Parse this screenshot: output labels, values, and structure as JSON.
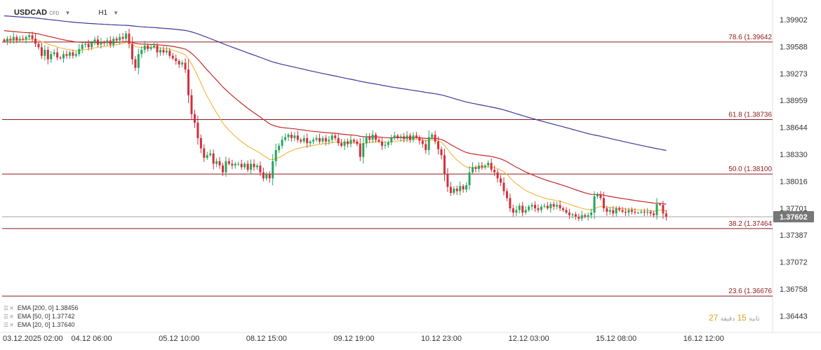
{
  "header": {
    "symbol": "USDCAD",
    "instrument_type": "CFD",
    "timeframe": "H1",
    "caret_icon": "caret-down-icon"
  },
  "colors": {
    "bull": "#26a65b",
    "bear": "#d32f3c",
    "ema200": "#3b3a9a",
    "ema50": "#c62828",
    "ema20": "#f2b53a",
    "fib": "#8b1a1a",
    "price_line": "#888888",
    "price_badge": "#777777"
  },
  "legend": [
    {
      "label": "EMA [200, 0]",
      "value": "1.38456"
    },
    {
      "label": "EMA [50, 0]",
      "value": "1.37742"
    },
    {
      "label": "EMA [20, 0]",
      "value": "1.37640"
    }
  ],
  "countdown": {
    "arabic": "دقيقة",
    "value": "15",
    "arabic2": "ثانية",
    "value2": "27"
  },
  "chart_data": {
    "type": "candlestick",
    "title": "",
    "xlabel": "",
    "ylabel": "",
    "ylim": [
      1.363,
      1.4005
    ],
    "y_ticks": [
      "1.39902",
      "1.39588",
      "1.39273",
      "1.38959",
      "1.38644",
      "1.38330",
      "1.38016",
      "1.37701",
      "1.37387",
      "1.37072",
      "1.36758",
      "1.36443"
    ],
    "x_ticks": [
      {
        "label": "03.12.2025  02:00",
        "bar": 0
      },
      {
        "label": "04.12  06:00",
        "bar": 28
      },
      {
        "label": "05.12  10:00",
        "bar": 56
      },
      {
        "label": "08.12  15:00",
        "bar": 84
      },
      {
        "label": "09.12  19:00",
        "bar": 112
      },
      {
        "label": "10.12  23:00",
        "bar": 140
      },
      {
        "label": "12.12  03:00",
        "bar": 168
      },
      {
        "label": "15.12  08:00",
        "bar": 196
      },
      {
        "label": "16.12  12:00",
        "bar": 224
      }
    ],
    "current_price": "1.37602",
    "current_price_value": 1.37602,
    "fib_levels": [
      {
        "label": "78.6 (1.39642",
        "value": 1.39642
      },
      {
        "label": "61.8 (1.38736",
        "value": 1.38736
      },
      {
        "label": "50.0 (1.38100",
        "value": 1.381
      },
      {
        "label": "38.2 (1.37464",
        "value": 1.37464
      },
      {
        "label": "23.6 (1.36676",
        "value": 1.36676
      }
    ],
    "closes": [
      1.3965,
      1.3968,
      1.3966,
      1.397,
      1.3966,
      1.3968,
      1.3967,
      1.397,
      1.3972,
      1.3968,
      1.3962,
      1.3958,
      1.3948,
      1.3955,
      1.3944,
      1.395,
      1.3952,
      1.3946,
      1.3945,
      1.395,
      1.3948,
      1.3952,
      1.3948,
      1.395,
      1.3956,
      1.3961,
      1.3962,
      1.3958,
      1.3963,
      1.3967,
      1.3961,
      1.3964,
      1.3963,
      1.3966,
      1.3961,
      1.3968,
      1.3966,
      1.397,
      1.3968,
      1.3974,
      1.3962,
      1.3944,
      1.3934,
      1.395,
      1.3955,
      1.396,
      1.3956,
      1.3958,
      1.396,
      1.3952,
      1.3955,
      1.3952,
      1.3954,
      1.3948,
      1.3945,
      1.3942,
      1.3938,
      1.394,
      1.3932,
      1.3902,
      1.388,
      1.387,
      1.3852,
      1.384,
      1.3829,
      1.3832,
      1.3834,
      1.3822,
      1.3825,
      1.382,
      1.3812,
      1.3825,
      1.3822,
      1.382,
      1.3822,
      1.3822,
      1.3818,
      1.3822,
      1.3815,
      1.3822,
      1.3818,
      1.382,
      1.3812,
      1.3805,
      1.381,
      1.3805,
      1.3825,
      1.3838,
      1.3843,
      1.385,
      1.3853,
      1.3856,
      1.3852,
      1.3855,
      1.385,
      1.3848,
      1.3852,
      1.3846,
      1.3848,
      1.385,
      1.3852,
      1.3848,
      1.3852,
      1.3848,
      1.385,
      1.3855,
      1.3852,
      1.3846,
      1.3843,
      1.3848,
      1.3845,
      1.385,
      1.3848,
      1.3845,
      1.383,
      1.3846,
      1.3854,
      1.385,
      1.3856,
      1.385,
      1.3848,
      1.3843,
      1.3844,
      1.3847,
      1.3852,
      1.3855,
      1.3852,
      1.3854,
      1.3851,
      1.3855,
      1.385,
      1.3855,
      1.3853,
      1.3849,
      1.3845,
      1.3838,
      1.3853,
      1.3856,
      1.3848,
      1.3839,
      1.3832,
      1.381,
      1.3795,
      1.3788,
      1.3793,
      1.379,
      1.3796,
      1.3792,
      1.3797,
      1.3812,
      1.3818,
      1.3816,
      1.382,
      1.3818,
      1.382,
      1.3823,
      1.3815,
      1.3812,
      1.3805,
      1.38,
      1.379,
      1.3782,
      1.377,
      1.3765,
      1.3768,
      1.3773,
      1.3765,
      1.3768,
      1.3772,
      1.3774,
      1.377,
      1.3768,
      1.3772,
      1.3773,
      1.377,
      1.3775,
      1.3772,
      1.3774,
      1.377,
      1.3768,
      1.3765,
      1.3762,
      1.3763,
      1.376,
      1.3758,
      1.3762,
      1.376,
      1.3762,
      1.3765,
      1.3784,
      1.3786,
      1.3782,
      1.377,
      1.3766,
      1.3768,
      1.3764,
      1.377,
      1.3768,
      1.3766,
      1.3765,
      1.3768,
      1.3766,
      1.3765,
      1.3765,
      1.3766,
      1.3765,
      1.3766,
      1.3764,
      1.3762,
      1.3775,
      1.3774,
      1.3764,
      1.376
    ]
  }
}
